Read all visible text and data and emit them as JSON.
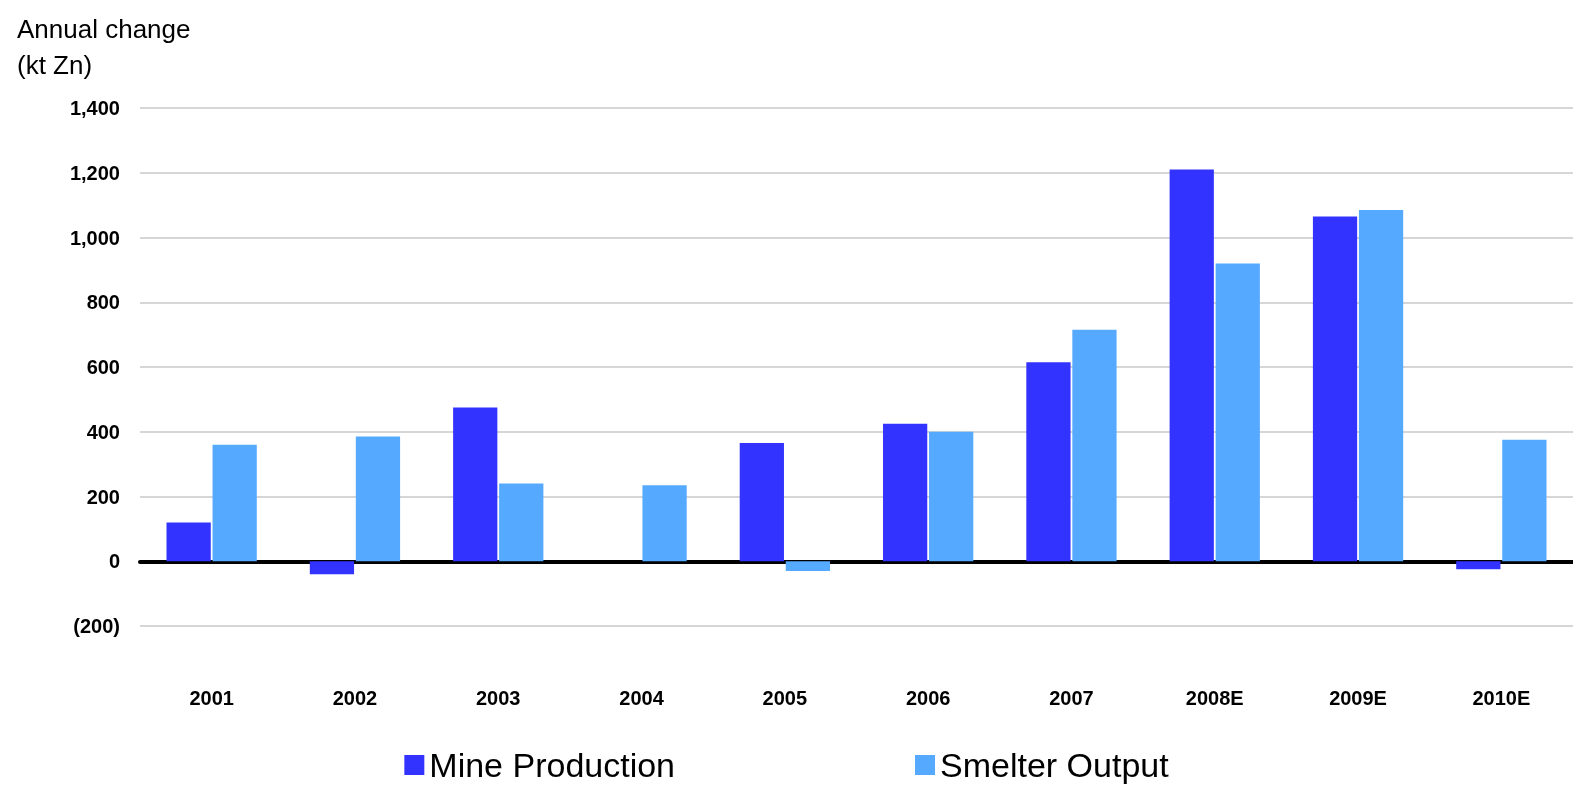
{
  "chart_data": {
    "type": "bar",
    "ylabel": "Annual change\n(kt Zn)",
    "categories": [
      "2001",
      "2002",
      "2003",
      "2004",
      "2005",
      "2006",
      "2007",
      "2008E",
      "2009E",
      "2010E"
    ],
    "series": [
      {
        "name": "Mine Production",
        "color": "#3333ff",
        "values": [
          120,
          -40,
          475,
          0,
          365,
          425,
          615,
          1210,
          1065,
          -25
        ]
      },
      {
        "name": "Smelter Output",
        "color": "#55aaff",
        "values": [
          360,
          385,
          240,
          235,
          -30,
          400,
          715,
          920,
          1085,
          375
        ]
      }
    ],
    "ylim": [
      -200,
      1400
    ],
    "yticks": [
      {
        "value": -200,
        "label": "(200)"
      },
      0,
      200,
      400,
      600,
      800,
      {
        "value": 1000,
        "label": "1,000"
      },
      {
        "value": 1200,
        "label": "1,200"
      },
      {
        "value": 1400,
        "label": "1,400"
      }
    ],
    "grid": "y",
    "legend": "bottom"
  }
}
